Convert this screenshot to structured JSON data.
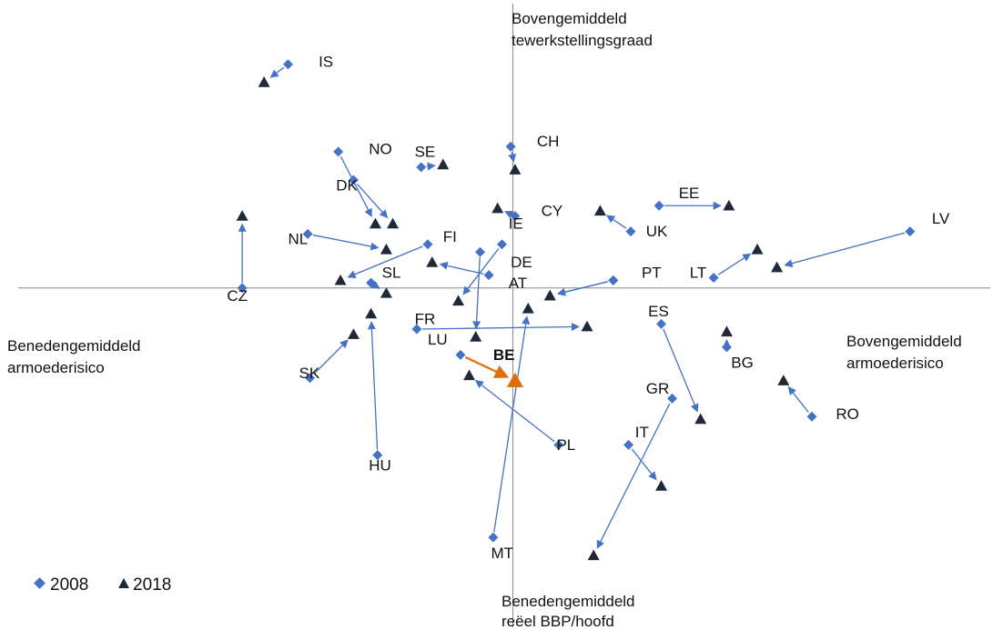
{
  "chart_data": {
    "type": "scatter",
    "colors": {
      "y2008": "#4472C4",
      "y2018": "#1F2937",
      "highlight": "#E36C0A",
      "axis": "#8C8C8C"
    },
    "xlim": [
      -23.5,
      22.0
    ],
    "ylim": [
      -13.3,
      11.2
    ],
    "quadrant_labels": {
      "top": [
        "Bovengemiddeld",
        "tewerkstellingsgraad"
      ],
      "bottom": [
        "Benedengemiddeld",
        "reëel BBP/hoofd"
      ],
      "left": [
        "Benedengemiddeld",
        "armoederisico"
      ],
      "right": [
        "Bovengemiddeld",
        "armoederisico"
      ]
    },
    "legend": {
      "s2008": "2008",
      "s2018": "2018"
    },
    "countries": [
      {
        "code": "IS",
        "p2008": [
          -10.3,
          8.7
        ],
        "p2018": [
          -11.4,
          8.0
        ],
        "label": [
          -8.9,
          8.6
        ]
      },
      {
        "code": "NO",
        "p2008": [
          -8.0,
          5.3
        ],
        "p2018": [
          -6.3,
          2.5
        ],
        "label": [
          -6.6,
          5.2
        ]
      },
      {
        "code": "SE",
        "p2008": [
          -4.2,
          4.7
        ],
        "p2018": [
          -3.2,
          4.8
        ],
        "label": [
          -4.5,
          5.1
        ]
      },
      {
        "code": "CH",
        "p2008": [
          -0.1,
          5.5
        ],
        "p2018": [
          0.1,
          4.6
        ],
        "label": [
          1.1,
          5.5
        ]
      },
      {
        "code": "DK",
        "p2008": [
          -7.3,
          4.2
        ],
        "p2018": [
          -5.5,
          2.5
        ],
        "label": [
          -8.1,
          3.8
        ]
      },
      {
        "code": "NL",
        "p2008": [
          -9.4,
          2.1
        ],
        "p2018": [
          -5.8,
          1.5
        ],
        "label": [
          -10.3,
          1.7
        ]
      },
      {
        "code": "CZ",
        "p2008": [
          -12.4,
          0.0
        ],
        "p2018": [
          -12.4,
          2.8
        ],
        "label": [
          -13.1,
          -0.5
        ]
      },
      {
        "code": "FI",
        "p2008": [
          -3.9,
          1.7
        ],
        "p2018": [
          -7.9,
          0.3
        ],
        "label": [
          -3.2,
          1.8
        ]
      },
      {
        "code": "SL",
        "p2008": [
          -6.5,
          0.2
        ],
        "p2018": [
          -5.8,
          -0.2
        ],
        "label": [
          -6.0,
          0.4
        ]
      },
      {
        "code": "CY",
        "p2008": [
          0.1,
          2.8
        ],
        "p2018": [
          -0.7,
          3.1
        ],
        "label": [
          1.3,
          2.8
        ]
      },
      {
        "code": "IE",
        "p2008": [
          -0.5,
          1.7
        ],
        "p2018": [
          -2.5,
          -0.5
        ],
        "label": [
          -0.2,
          2.3
        ]
      },
      {
        "code": "DE",
        "p2008": [
          -1.1,
          0.5
        ],
        "p2018": [
          -3.7,
          1.0
        ],
        "label": [
          -0.1,
          0.8
        ]
      },
      {
        "code": "AT",
        "p2008": [
          4.6,
          0.3
        ],
        "p2018": [
          1.7,
          -0.3
        ],
        "label": [
          -0.2,
          0.0
        ]
      },
      {
        "code": "PT",
        "p2008": [
          4.6,
          0.3
        ],
        "p2018": [
          1.7,
          -0.3
        ],
        "label": [
          5.9,
          0.4
        ]
      },
      {
        "code": "FR",
        "p2008": [
          -4.4,
          -1.6
        ],
        "p2018": [
          3.4,
          -1.5
        ],
        "label": [
          -4.5,
          -1.4
        ]
      },
      {
        "code": "LU",
        "p2008": [
          -1.5,
          1.4
        ],
        "p2018": [
          -1.7,
          -1.9
        ],
        "label": [
          -3.9,
          -2.2
        ]
      },
      {
        "code": "BE",
        "p2008": [
          -2.4,
          -2.6
        ],
        "p2018": [
          0.1,
          -3.6
        ],
        "label": [
          -0.9,
          -2.8
        ]
      },
      {
        "code": "PL",
        "p2008": [
          2.1,
          -6.1
        ],
        "p2018": [
          -2.0,
          -3.4
        ],
        "label": [
          2.0,
          -6.3
        ]
      },
      {
        "code": "SK",
        "p2008": [
          -9.3,
          -3.5
        ],
        "p2018": [
          -7.3,
          -1.8
        ],
        "label": [
          -9.8,
          -3.5
        ]
      },
      {
        "code": "HU",
        "p2008": [
          -6.2,
          -6.5
        ],
        "p2018": [
          -6.5,
          -1.0
        ],
        "label": [
          -6.6,
          -7.1
        ]
      },
      {
        "code": "MT",
        "p2008": [
          -0.9,
          -9.7
        ],
        "p2018": [
          0.7,
          -0.8
        ],
        "label": [
          -1.0,
          -10.5
        ]
      },
      {
        "code": "EE",
        "p2008": [
          6.7,
          3.2
        ],
        "p2018": [
          9.9,
          3.2
        ],
        "label": [
          7.6,
          3.5
        ]
      },
      {
        "code": "UK",
        "p2008": [
          5.4,
          2.2
        ],
        "p2018": [
          4.0,
          3.0
        ],
        "label": [
          6.1,
          2.0
        ]
      },
      {
        "code": "LV",
        "p2008": [
          18.2,
          2.2
        ],
        "p2018": [
          12.1,
          0.8
        ],
        "label": [
          19.2,
          2.5
        ]
      },
      {
        "code": "LT",
        "p2008": [
          9.2,
          0.4
        ],
        "p2018": [
          11.2,
          1.5
        ],
        "label": [
          8.1,
          0.4
        ]
      },
      {
        "code": "ES",
        "p2008": [
          6.8,
          -1.4
        ],
        "p2018": [
          8.6,
          -5.1
        ],
        "label": [
          6.2,
          -1.1
        ]
      },
      {
        "code": "BG",
        "p2008": [
          9.8,
          -2.3
        ],
        "p2018": [
          9.8,
          -1.7
        ],
        "label": [
          10.0,
          -3.1
        ]
      },
      {
        "code": "GR",
        "p2008": [
          7.3,
          -4.3
        ],
        "p2018": [
          3.7,
          -10.4
        ],
        "label": [
          6.1,
          -4.1
        ]
      },
      {
        "code": "IT",
        "p2008": [
          5.3,
          -6.1
        ],
        "p2018": [
          6.8,
          -7.7
        ],
        "label": [
          5.6,
          -5.8
        ]
      },
      {
        "code": "RO",
        "p2008": [
          13.7,
          -5.0
        ],
        "p2018": [
          12.4,
          -3.6
        ],
        "label": [
          14.8,
          -5.1
        ]
      }
    ]
  }
}
